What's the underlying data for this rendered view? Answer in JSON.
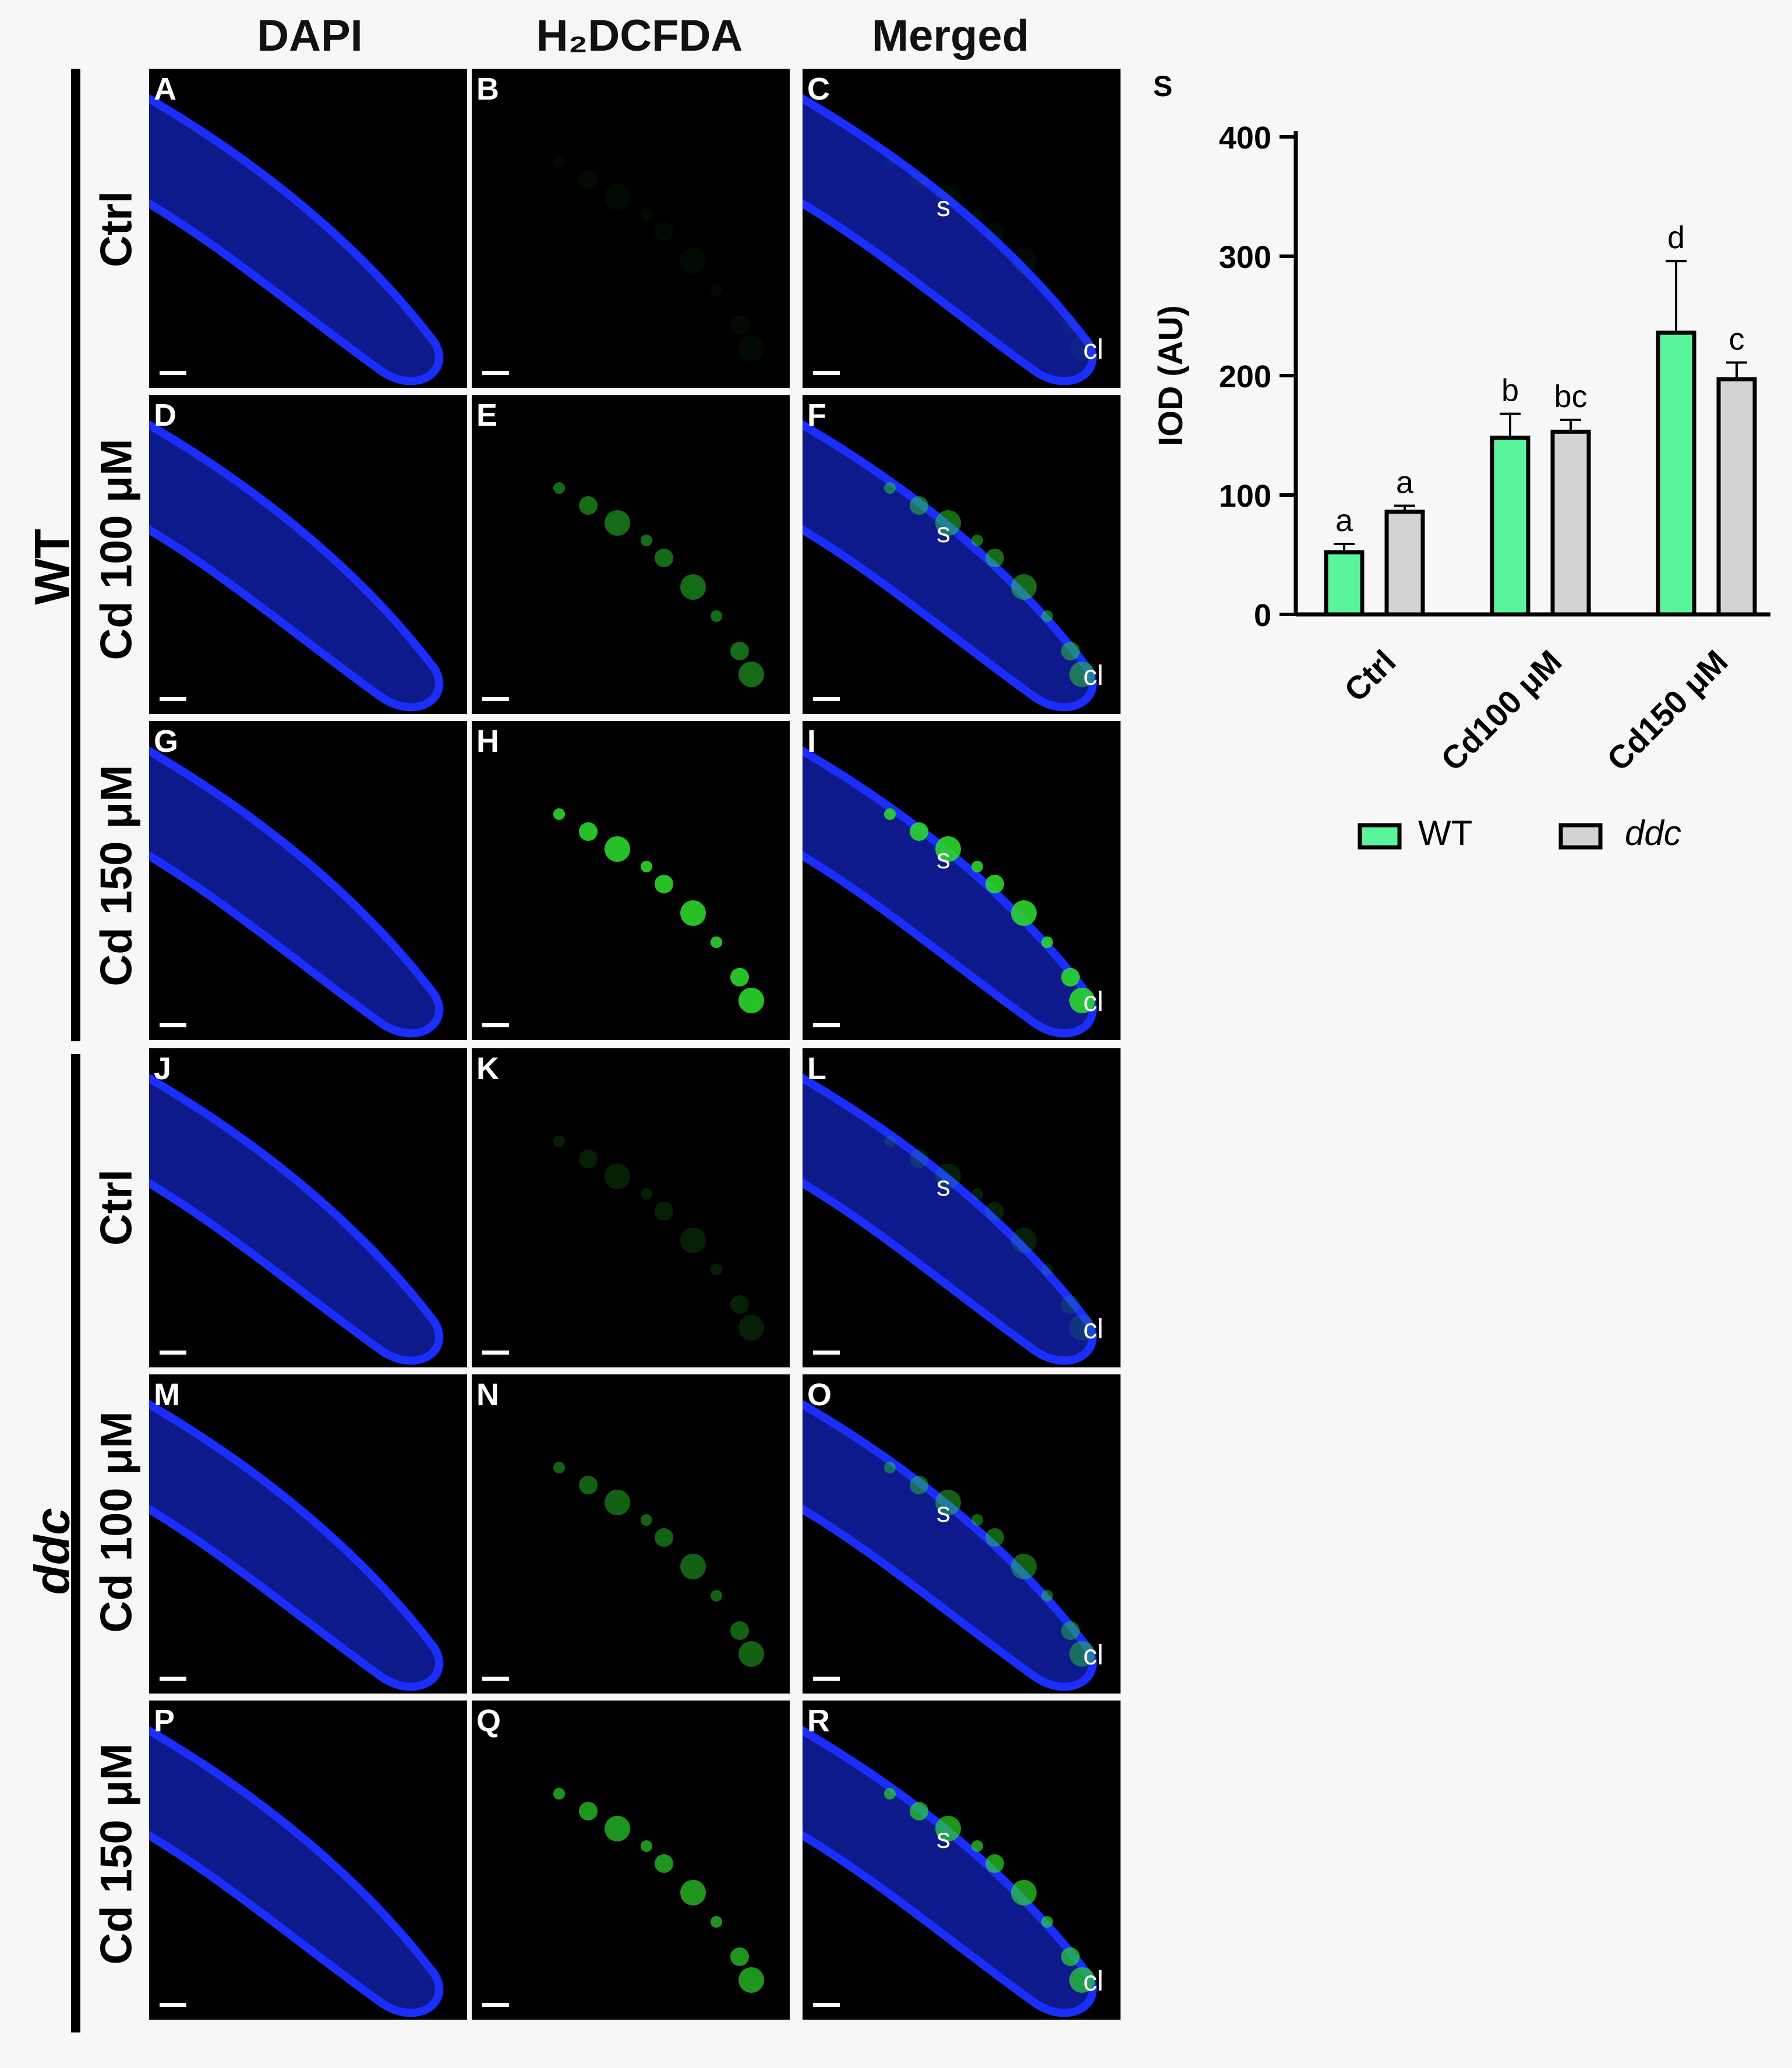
{
  "columns": [
    "DAPI",
    "H₂DCFDA",
    "Merged"
  ],
  "groups": [
    "WT",
    "ddc"
  ],
  "rows": [
    "Ctrl",
    "Cd 100 μM",
    "Cd 150 μM",
    "Ctrl",
    "Cd 100 μM",
    "Cd 150 μM"
  ],
  "panels": [
    {
      "id": "A",
      "type": "dapi",
      "s": "",
      "cl": ""
    },
    {
      "id": "B",
      "type": "dcf",
      "s": "",
      "cl": ""
    },
    {
      "id": "C",
      "type": "merged",
      "s": "s",
      "cl": "cl"
    },
    {
      "id": "D",
      "type": "dapi",
      "s": "",
      "cl": ""
    },
    {
      "id": "E",
      "type": "dcf",
      "s": "",
      "cl": ""
    },
    {
      "id": "F",
      "type": "merged",
      "s": "s",
      "cl": "cl"
    },
    {
      "id": "G",
      "type": "dapi",
      "s": "",
      "cl": ""
    },
    {
      "id": "H",
      "type": "dcf",
      "s": "",
      "cl": ""
    },
    {
      "id": "I",
      "type": "merged",
      "s": "s",
      "cl": "cl"
    },
    {
      "id": "J",
      "type": "dapi",
      "s": "",
      "cl": ""
    },
    {
      "id": "K",
      "type": "dcf",
      "s": "",
      "cl": ""
    },
    {
      "id": "L",
      "type": "merged",
      "s": "s",
      "cl": "cl"
    },
    {
      "id": "M",
      "type": "dapi",
      "s": "",
      "cl": ""
    },
    {
      "id": "N",
      "type": "dcf",
      "s": "",
      "cl": ""
    },
    {
      "id": "O",
      "type": "merged",
      "s": "s",
      "cl": "cl"
    },
    {
      "id": "P",
      "type": "dapi",
      "s": "",
      "cl": ""
    },
    {
      "id": "Q",
      "type": "dcf",
      "s": "",
      "cl": ""
    },
    {
      "id": "R",
      "type": "merged",
      "s": "s",
      "cl": "cl"
    }
  ],
  "colors": {
    "dapi": "#1a2eff",
    "dcf": "#2bd62b",
    "wt_bar": "#5af59a",
    "ddc_bar": "#d3d3d3"
  },
  "chart_data": {
    "type": "bar",
    "panel_label": "S",
    "categories": [
      "Ctrl",
      "Cd100 μM",
      "Cd150 μM"
    ],
    "series": [
      {
        "name": "WT",
        "values": [
          52,
          148,
          236
        ],
        "errors": [
          7,
          20,
          60
        ],
        "letters": [
          "a",
          "b",
          "d"
        ]
      },
      {
        "name": "ddc",
        "values": [
          86,
          153,
          197
        ],
        "errors": [
          5,
          10,
          14
        ],
        "letters": [
          "a",
          "bc",
          "c"
        ]
      }
    ],
    "ylabel": "IOD (AU)",
    "ylim": [
      0,
      400
    ],
    "yticks": [
      0,
      100,
      200,
      300,
      400
    ],
    "legend_position": "bottom"
  }
}
